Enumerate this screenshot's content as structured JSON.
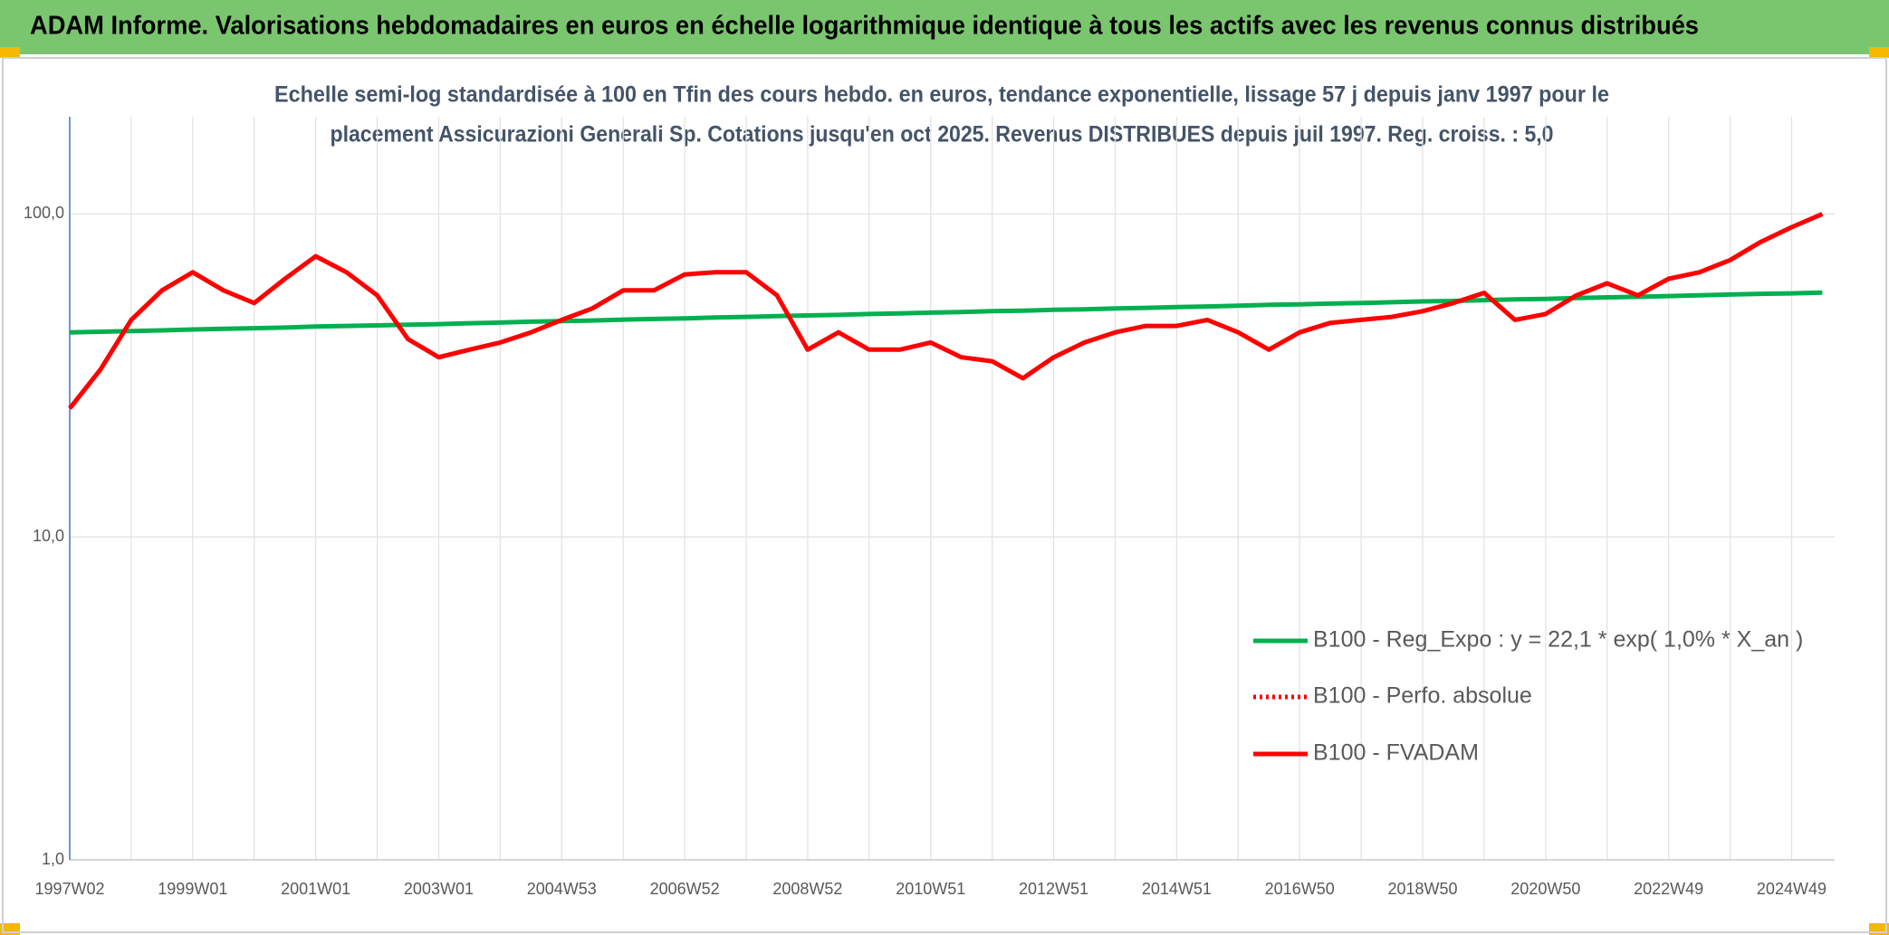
{
  "banner": "ADAM Informe. Valorisations hebdomadaires en euros en échelle logarithmique identique à tous les actifs avec les revenus connus distribués",
  "chart_data": {
    "type": "line",
    "title": [
      "Echelle semi-log standardisée à 100 en Tfin des cours hebdo. en euros, tendance exponentielle, lissage 57 j depuis janv 1997 pour le",
      "placement Assicurazioni Generali Sp. Cotations jusqu'en oct 2025. Revenus DISTRIBUES depuis juil 1997. Reg. croiss. : 5,0"
    ],
    "categories": [
      "1997W02",
      null,
      null,
      null,
      "1999W01",
      null,
      null,
      null,
      "2001W01",
      null,
      null,
      null,
      "2003W01",
      null,
      null,
      null,
      "2004W53",
      null,
      null,
      null,
      "2006W52",
      null,
      null,
      null,
      "2008W52",
      null,
      null,
      null,
      "2010W51",
      null,
      null,
      null,
      "2012W51",
      null,
      null,
      null,
      "2014W51",
      null,
      null,
      null,
      "2016W50",
      null,
      null,
      null,
      "2018W50",
      null,
      null,
      null,
      "2020W50",
      null,
      null,
      null,
      "2022W49",
      null,
      null,
      null,
      "2024W49",
      null
    ],
    "series": [
      {
        "name": "B100 - Reg_Expo : y = 22,1 * exp( 1,0% *  X_an )",
        "color": "#00b050",
        "style": "solid",
        "values": [
          43.0,
          43.2,
          43.4,
          43.6,
          43.9,
          44.1,
          44.3,
          44.5,
          44.8,
          45.0,
          45.2,
          45.4,
          45.6,
          45.9,
          46.1,
          46.4,
          46.6,
          46.8,
          47.1,
          47.3,
          47.5,
          47.8,
          48.0,
          48.3,
          48.5,
          48.7,
          49.0,
          49.2,
          49.5,
          49.7,
          50.0,
          50.2,
          50.5,
          50.7,
          51.0,
          51.2,
          51.5,
          51.7,
          52.0,
          52.3,
          52.5,
          52.8,
          53.0,
          53.3,
          53.6,
          53.8,
          54.1,
          54.4,
          54.6,
          54.9,
          55.2,
          55.4,
          55.7,
          56.0,
          56.3,
          56.6,
          56.8,
          57.1
        ]
      },
      {
        "name": "B100 - Perfo. absolue",
        "color": "#ff0000",
        "style": "dotted",
        "values": [
          null,
          null,
          null,
          null,
          null,
          null,
          null,
          null,
          null,
          null,
          null,
          null,
          null,
          null,
          null,
          null,
          null,
          null,
          null,
          null,
          null,
          null,
          null,
          null,
          null,
          null,
          null,
          null,
          null,
          null,
          null,
          null,
          null,
          null,
          null,
          null,
          null,
          null,
          null,
          null,
          null,
          null,
          null,
          null,
          null,
          null,
          null,
          null,
          null,
          null,
          null,
          null,
          null,
          null,
          null,
          null,
          null,
          null
        ]
      },
      {
        "name": "B100 - FVADAM",
        "color": "#ff0000",
        "style": "solid",
        "values": [
          25,
          33,
          47,
          58,
          66,
          58,
          53,
          63,
          74,
          66,
          56,
          41,
          36,
          38,
          40,
          43,
          47,
          51,
          58,
          58,
          65,
          66,
          66,
          56,
          38,
          43,
          38,
          38,
          40,
          36,
          35,
          31,
          36,
          40,
          43,
          45,
          45,
          47,
          43,
          38,
          43,
          46,
          47,
          48,
          50,
          53,
          57,
          47,
          49,
          56,
          61,
          56,
          63,
          66,
          72,
          82,
          91,
          100
        ]
      }
    ],
    "ylim": [
      1,
      200
    ],
    "log_scale": true,
    "yticks": [
      {
        "value": 1,
        "label": "1,0"
      },
      {
        "value": 10,
        "label": "10,0"
      },
      {
        "value": 100,
        "label": "100,0"
      }
    ],
    "grid": true
  }
}
